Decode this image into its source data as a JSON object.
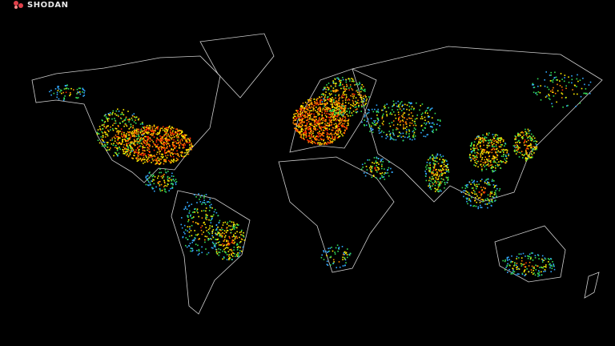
{
  "logo": {
    "text": "SHODAN",
    "icon": "shodan-logo-icon",
    "color": "#e0404a"
  },
  "map": {
    "title": "",
    "background": "#000000",
    "outline_color": "#cfcfcf",
    "density_colors": [
      "#ff2a00",
      "#ff8800",
      "#ffee00",
      "#33dd55",
      "#33aaff"
    ]
  }
}
